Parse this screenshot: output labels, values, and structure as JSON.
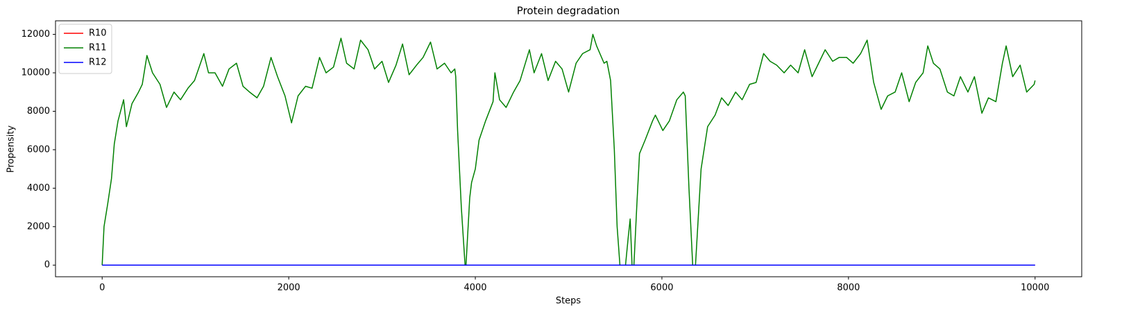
{
  "chart_data": {
    "type": "line",
    "title": "Protein degradation",
    "x_label": "Steps",
    "y_label": "Propensity",
    "xlim": [
      -500,
      10500
    ],
    "xticks": [
      0,
      2000,
      4000,
      6000,
      8000,
      10000
    ],
    "ylim": [
      -605,
      12705
    ],
    "yticks": [
      0,
      2000,
      4000,
      6000,
      8000,
      10000,
      12000
    ],
    "legend": "upper left",
    "series": [
      {
        "name": "R10",
        "color": "#ff0000",
        "x": [
          0,
          10000
        ],
        "values": [
          0,
          0
        ]
      },
      {
        "name": "R11",
        "color": "#008000",
        "x": [
          0,
          20,
          60,
          100,
          130,
          170,
          230,
          260,
          320,
          390,
          430,
          480,
          540,
          620,
          690,
          770,
          840,
          920,
          990,
          1090,
          1140,
          1210,
          1290,
          1360,
          1440,
          1510,
          1580,
          1660,
          1730,
          1810,
          1880,
          1960,
          2030,
          2100,
          2180,
          2250,
          2330,
          2400,
          2480,
          2560,
          2620,
          2700,
          2770,
          2850,
          2920,
          3000,
          3070,
          3150,
          3220,
          3290,
          3370,
          3440,
          3520,
          3590,
          3670,
          3740,
          3780,
          3790,
          3810,
          3850,
          3890,
          3900,
          3940,
          3960,
          4000,
          4040,
          4110,
          4190,
          4210,
          4260,
          4330,
          4410,
          4480,
          4580,
          4630,
          4710,
          4780,
          4860,
          4930,
          5000,
          5080,
          5150,
          5230,
          5260,
          5300,
          5380,
          5410,
          5450,
          5490,
          5520,
          5550,
          5580,
          5610,
          5640,
          5660,
          5680,
          5700,
          5730,
          5760,
          5820,
          5900,
          5930,
          6010,
          6080,
          6160,
          6230,
          6250,
          6290,
          6330,
          6360,
          6420,
          6490,
          6570,
          6640,
          6710,
          6790,
          6860,
          6940,
          7010,
          7090,
          7160,
          7230,
          7310,
          7380,
          7460,
          7530,
          7610,
          7680,
          7750,
          7830,
          7900,
          7980,
          8050,
          8130,
          8200,
          8270,
          8350,
          8420,
          8500,
          8570,
          8650,
          8720,
          8800,
          8850,
          8910,
          8980,
          9060,
          9130,
          9200,
          9280,
          9350,
          9430,
          9500,
          9580,
          9650,
          9690,
          9760,
          9840,
          9910,
          9990,
          10000
        ],
        "values": [
          0,
          2000,
          3200,
          4500,
          6300,
          7500,
          8600,
          7200,
          8400,
          9000,
          9400,
          10900,
          10000,
          9400,
          8200,
          9000,
          8600,
          9200,
          9600,
          11000,
          10000,
          10000,
          9300,
          10200,
          10500,
          9300,
          9000,
          8700,
          9300,
          10800,
          9800,
          8800,
          7400,
          8800,
          9300,
          9200,
          10800,
          10000,
          10300,
          11800,
          10500,
          10200,
          11700,
          11200,
          10200,
          10600,
          9500,
          10400,
          11500,
          9900,
          10400,
          10800,
          11600,
          10200,
          10500,
          10000,
          10200,
          9800,
          7000,
          3000,
          0,
          0,
          3500,
          4300,
          5000,
          6500,
          7500,
          8500,
          10000,
          8600,
          8200,
          9000,
          9600,
          11200,
          10000,
          11000,
          9600,
          10600,
          10200,
          9000,
          10500,
          11000,
          11200,
          12000,
          11400,
          10500,
          10600,
          9600,
          6000,
          2000,
          0,
          0,
          0,
          1500,
          2400,
          0,
          0,
          3000,
          5800,
          6500,
          7500,
          7800,
          7000,
          7500,
          8600,
          9000,
          8800,
          4000,
          0,
          0,
          5000,
          7200,
          7800,
          8700,
          8300,
          9000,
          8600,
          9400,
          9500,
          11000,
          10600,
          10400,
          10000,
          10400,
          10000,
          11200,
          9800,
          10500,
          11200,
          10600,
          10800,
          10800,
          10500,
          11000,
          11700,
          9500,
          8100,
          8800,
          9000,
          10000,
          8500,
          9500,
          10000,
          11400,
          10500,
          10200,
          9000,
          8800,
          9800,
          9000,
          9800,
          7900,
          8700,
          8500,
          10500,
          11400,
          9800,
          10400,
          9000,
          9400,
          9600
        ]
      },
      {
        "name": "R12",
        "color": "#0000ff",
        "x": [
          0,
          10000
        ],
        "values": [
          0,
          0
        ]
      }
    ]
  }
}
